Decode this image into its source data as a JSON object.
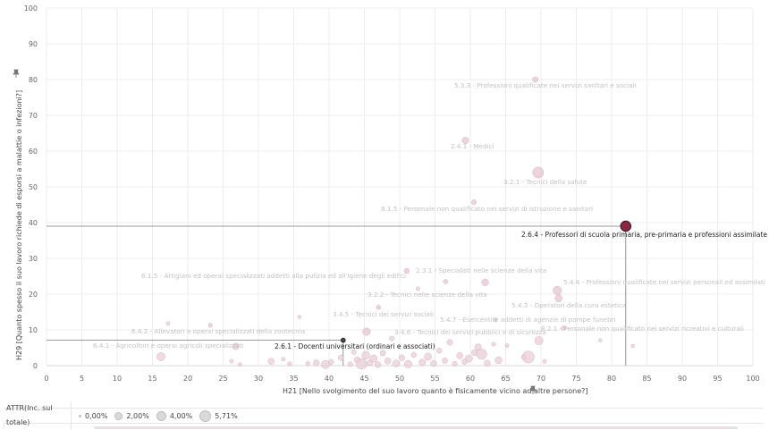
{
  "chart_data": {
    "type": "scatter",
    "xlabel": "H21 [Nello svolgimento del suo lavoro quanto è fisicamente vicino ad altre persone?]",
    "ylabel": "H29 [Quanto spesso il suo lavoro richiede di esporsi a malattie o infezioni?]",
    "xlim": [
      0,
      100
    ],
    "ylim": [
      0,
      100
    ],
    "x_ticks": [
      0,
      5,
      10,
      15,
      20,
      25,
      30,
      35,
      40,
      45,
      50,
      55,
      60,
      65,
      70,
      75,
      80,
      85,
      90,
      95,
      100
    ],
    "y_ticks": [
      0,
      10,
      20,
      30,
      40,
      50,
      60,
      70,
      80,
      90,
      100
    ],
    "size_legend_title": "ATTR(Inc. sul totale)",
    "size_legend": [
      {
        "label": "0,00%",
        "value": 0.0
      },
      {
        "label": "2,00%",
        "value": 2.0
      },
      {
        "label": "4,00%",
        "value": 4.0
      },
      {
        "label": "5,71%",
        "value": 5.71
      }
    ],
    "colors": {
      "point": "#e8cdd6",
      "point_stroke": "#d9b3c0",
      "selected": "#8b2741",
      "dark": "#4a4a4a",
      "grid": "#ececec",
      "refline": "#7a7a7a"
    },
    "labeled_points": [
      {
        "label": "5.3.3 - Professioni qualificate nei servizi sanitari e sociali",
        "x": 69.2,
        "y": 80,
        "size": 1.0
      },
      {
        "label": "2.4.1 - Medici",
        "x": 59.3,
        "y": 63,
        "size": 1.3
      },
      {
        "label": "3.2.1 - Tecnici della salute",
        "x": 69.6,
        "y": 54,
        "size": 2.6
      },
      {
        "label": "8.1.5 - Personale non qualificato nei servizi di istruzione e sanitari",
        "x": 60.5,
        "y": 45.7,
        "size": 0.8
      },
      {
        "label": "2.6.4 - Professori di scuola primaria, pre-primaria e professioni assimilate",
        "x": 82,
        "y": 39,
        "size": 2.4,
        "highlight": "selected"
      },
      {
        "label": "6.1.5 - Artigiani ed operai specializzati addetti alla pulizia ed all'igiene degli edifici",
        "x": 51,
        "y": 26.5,
        "size": 0.9
      },
      {
        "label": "2.3.1 - Specialisti nelle scienze della vita",
        "x": 56.5,
        "y": 23.5,
        "size": 0.7
      },
      {
        "label": "3.2.2 - Tecnici nelle scienze della vita",
        "x": 62.1,
        "y": 23.3,
        "size": 1.4
      },
      {
        "label": "5.4.4 - Professioni qualificate nei servizi personali ed assimilati",
        "x": 72.3,
        "y": 21,
        "size": 1.9
      },
      {
        "label": "5.4.3 - Operatori della cura estetica",
        "x": 72.5,
        "y": 18.8,
        "size": 1.5
      },
      {
        "label": "3.4.5 - Tecnici dei servizi sociali",
        "x": 47,
        "y": 16.3,
        "size": 0.7
      },
      {
        "label": "5.4.7 - Esercenti e addetti di agenzie di pompe funebri",
        "x": 63.5,
        "y": 12.8,
        "size": 0.6
      },
      {
        "label": "6.4.2 - Allevatori e operai specializzati della zootecnia",
        "x": 23.2,
        "y": 11.3,
        "size": 0.6
      },
      {
        "label": "8.2.1 - Personale non qualificato nei servizi ricreativi e culturali",
        "x": 73.2,
        "y": 10.5,
        "size": 0.7
      },
      {
        "label": "3.4.6 - Tecnici dei servizi pubblici e di sicurezza",
        "x": 45.3,
        "y": 9.5,
        "size": 1.6
      },
      {
        "label": "6.4.1 - Agricoltori e operai agricoli specializzati",
        "x": 26.8,
        "y": 5.4,
        "size": 1.3
      },
      {
        "label": "2.6.1 - Docenti universitari (ordinari e associati)",
        "x": 42,
        "y": 7.1,
        "size": 0.9,
        "highlight": "dark"
      }
    ],
    "other_points": [
      {
        "x": 16.2,
        "y": 2.5,
        "size": 1.8
      },
      {
        "x": 17.2,
        "y": 11.8,
        "size": 0.5
      },
      {
        "x": 26.2,
        "y": 1.2,
        "size": 0.5
      },
      {
        "x": 27.4,
        "y": 0.3,
        "size": 0.5
      },
      {
        "x": 31.8,
        "y": 1.2,
        "size": 1.2
      },
      {
        "x": 33.5,
        "y": 1.8,
        "size": 0.5
      },
      {
        "x": 34.4,
        "y": 0.5,
        "size": 0.6
      },
      {
        "x": 35.8,
        "y": 13.6,
        "size": 0.4
      },
      {
        "x": 37.0,
        "y": 0.6,
        "size": 0.6
      },
      {
        "x": 38.2,
        "y": 0.8,
        "size": 1.1
      },
      {
        "x": 39.5,
        "y": 0.3,
        "size": 1.8
      },
      {
        "x": 40.3,
        "y": 1.0,
        "size": 0.9
      },
      {
        "x": 41.7,
        "y": 2.2,
        "size": 1.0
      },
      {
        "x": 43.0,
        "y": 0.4,
        "size": 0.8
      },
      {
        "x": 43.5,
        "y": 3.8,
        "size": 0.8
      },
      {
        "x": 44.0,
        "y": 1.6,
        "size": 1.2
      },
      {
        "x": 44.6,
        "y": 0.5,
        "size": 2.5
      },
      {
        "x": 45.2,
        "y": 2.9,
        "size": 1.7
      },
      {
        "x": 45.8,
        "y": 0.8,
        "size": 1.1
      },
      {
        "x": 46.3,
        "y": 2.0,
        "size": 1.5
      },
      {
        "x": 46.9,
        "y": 0.3,
        "size": 1.2
      },
      {
        "x": 47.6,
        "y": 3.5,
        "size": 1.0
      },
      {
        "x": 48.3,
        "y": 1.3,
        "size": 1.2
      },
      {
        "x": 48.9,
        "y": 7.6,
        "size": 0.8
      },
      {
        "x": 49.5,
        "y": 0.6,
        "size": 1.4
      },
      {
        "x": 50.3,
        "y": 2.2,
        "size": 1.1
      },
      {
        "x": 51.2,
        "y": 0.4,
        "size": 1.6
      },
      {
        "x": 52.0,
        "y": 3.0,
        "size": 0.9
      },
      {
        "x": 52.6,
        "y": 21.5,
        "size": 0.5
      },
      {
        "x": 53.2,
        "y": 0.9,
        "size": 1.3
      },
      {
        "x": 54.0,
        "y": 2.5,
        "size": 1.5
      },
      {
        "x": 54.8,
        "y": 0.6,
        "size": 1.2
      },
      {
        "x": 55.6,
        "y": 4.2,
        "size": 0.9
      },
      {
        "x": 56.4,
        "y": 1.4,
        "size": 1.0
      },
      {
        "x": 57.1,
        "y": 6.5,
        "size": 1.1
      },
      {
        "x": 57.8,
        "y": 0.5,
        "size": 0.8
      },
      {
        "x": 58.5,
        "y": 2.8,
        "size": 1.2
      },
      {
        "x": 59.2,
        "y": 1.1,
        "size": 1.0
      },
      {
        "x": 59.8,
        "y": 2.0,
        "size": 1.5
      },
      {
        "x": 60.6,
        "y": 3.6,
        "size": 1.2
      },
      {
        "x": 61.1,
        "y": 5.2,
        "size": 1.3
      },
      {
        "x": 61.6,
        "y": 3.2,
        "size": 2.4
      },
      {
        "x": 62.4,
        "y": 0.7,
        "size": 1.2
      },
      {
        "x": 63.3,
        "y": 6.0,
        "size": 0.6
      },
      {
        "x": 64.0,
        "y": 1.5,
        "size": 1.4
      },
      {
        "x": 65.2,
        "y": 5.6,
        "size": 0.5
      },
      {
        "x": 67.6,
        "y": 2.4,
        "size": 0.8
      },
      {
        "x": 68.2,
        "y": 2.4,
        "size": 2.9
      },
      {
        "x": 69.7,
        "y": 7.0,
        "size": 1.8
      },
      {
        "x": 70.5,
        "y": 1.2,
        "size": 0.5
      },
      {
        "x": 78.4,
        "y": 7.1,
        "size": 0.4
      },
      {
        "x": 83.0,
        "y": 5.5,
        "size": 0.4
      }
    ]
  }
}
